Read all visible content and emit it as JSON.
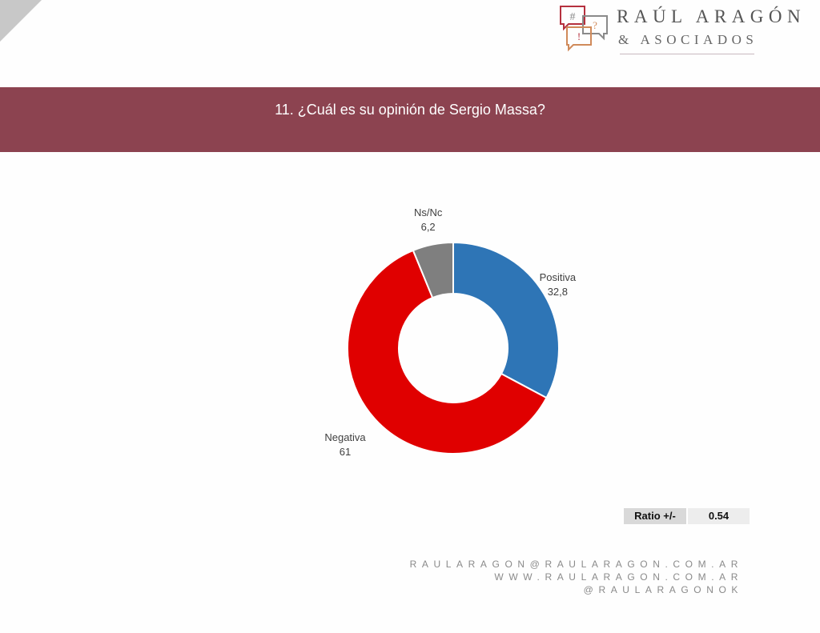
{
  "brand": {
    "name": "RAÚL ARAGÓN",
    "subtitle": "& ASOCIADOS",
    "icon_glyphs": [
      "#",
      "?",
      "!"
    ]
  },
  "banner": {
    "title": "11. ¿Cuál es su opinión de Sergio Massa?"
  },
  "chart_data": {
    "type": "pie",
    "variant": "donut",
    "title": "",
    "slices": [
      {
        "label": "Positiva",
        "value": 32.8,
        "display": "32,8",
        "color": "#2e75b6"
      },
      {
        "label": "Negativa",
        "value": 61,
        "display": "61",
        "color": "#e00000"
      },
      {
        "label": "Ns/Nc",
        "value": 6.2,
        "display": "6,2",
        "color": "#7f7f7f"
      }
    ]
  },
  "ratio": {
    "label": "Ratio +/-",
    "value": "0.54"
  },
  "footer": {
    "email": "RAULARAGON@RAULARAGON.COM.AR",
    "website": "WWW.RAULARAGON.COM.AR",
    "handle": "@RAULARAGONOK"
  },
  "colors": {
    "banner": "#8c4350",
    "logo_red": "#b5303e",
    "logo_gray": "#8a8a8a",
    "logo_orange": "#d08a5a"
  }
}
